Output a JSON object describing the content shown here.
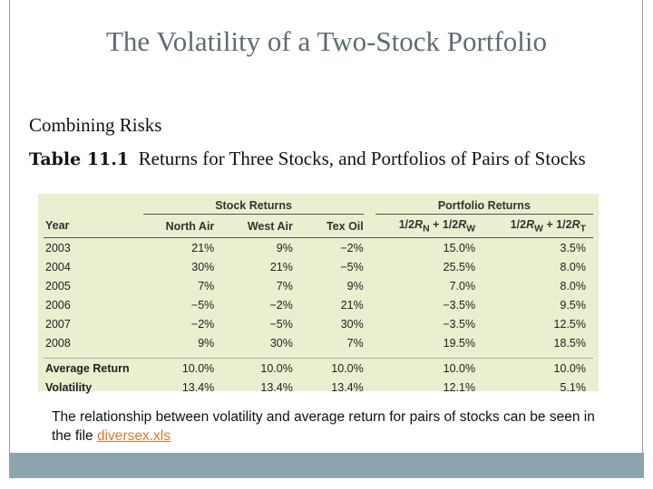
{
  "slide": {
    "title": "The Volatility of a Two-Stock Portfolio",
    "subtitle": "Combining Risks",
    "table_label": "Table 11.1",
    "table_caption": "Returns for Three Stocks, and Portfolios of Pairs of Stocks"
  },
  "table": {
    "group_headers": [
      "Stock Returns",
      "Portfolio Returns"
    ],
    "columns": [
      "Year",
      "North Air",
      "West Air",
      "Tex Oil",
      "1/2R_N + 1/2R_W",
      "1/2R_W + 1/2R_T"
    ],
    "rows": [
      [
        "2003",
        "21%",
        "9%",
        "−2%",
        "15.0%",
        "3.5%"
      ],
      [
        "2004",
        "30%",
        "21%",
        "−5%",
        "25.5%",
        "8.0%"
      ],
      [
        "2005",
        "7%",
        "7%",
        "9%",
        "7.0%",
        "8.0%"
      ],
      [
        "2006",
        "−5%",
        "−2%",
        "21%",
        "−3.5%",
        "9.5%"
      ],
      [
        "2007",
        "−2%",
        "−5%",
        "30%",
        "−3.5%",
        "12.5%"
      ],
      [
        "2008",
        "9%",
        "30%",
        "7%",
        "19.5%",
        "18.5%"
      ]
    ],
    "summary_rows": [
      [
        "Average Return",
        "10.0%",
        "10.0%",
        "10.0%",
        "10.0%",
        "10.0%"
      ],
      [
        "Volatility",
        "13.4%",
        "13.4%",
        "13.4%",
        "12.1%",
        "5.1%"
      ]
    ]
  },
  "footer": {
    "text": "The relationship between volatility and average return for pairs of stocks can be seen in the file",
    "link": "diversex.xls"
  },
  "colors": {
    "table_bg": "#e9efcf",
    "title": "#5d6c73",
    "footer_bar": "#8aa5ad",
    "link": "#e8742b"
  }
}
